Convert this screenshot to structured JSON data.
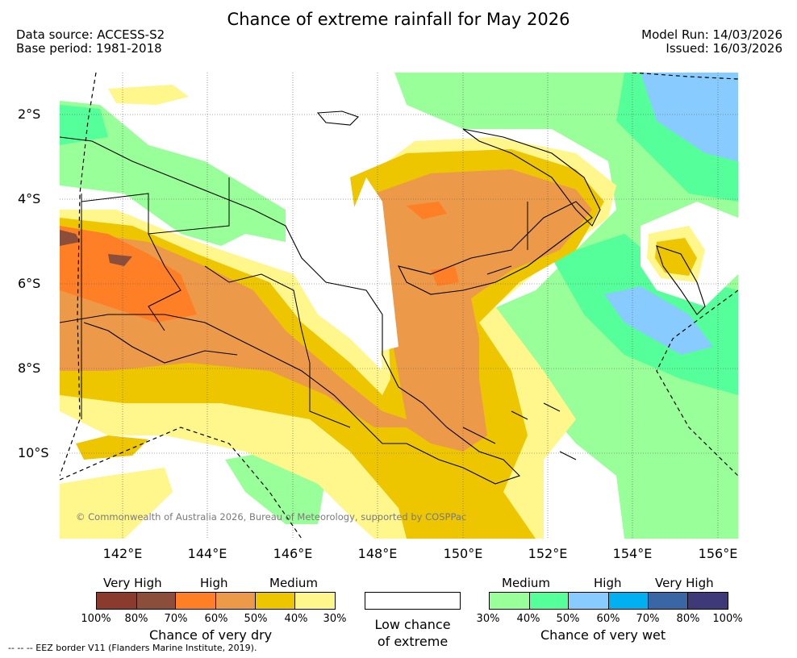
{
  "title": "Chance of extreme rainfall for May 2026",
  "meta": {
    "data_source": "Data source: ACCESS-S2",
    "base_period": "Base period: 1981-2018",
    "model_run": "Model Run: 14/03/2026",
    "issued": "Issued: 16/03/2026"
  },
  "map": {
    "copyright": "© Commonwealth of Australia 2026, Bureau of Meteorology, supported by COSPPac",
    "lat_labels": [
      "2°S",
      "4°S",
      "6°S",
      "8°S",
      "10°S"
    ],
    "lon_labels": [
      "142°E",
      "144°E",
      "146°E",
      "148°E",
      "150°E",
      "152°E",
      "154°E",
      "156°E"
    ],
    "colors": {
      "dry_very_high_100": "#8b3a2e",
      "dry_very_high_80": "#8b4e3a",
      "dry_high_70": "#ff7f27",
      "dry_high_60": "#ec9a4a",
      "dry_medium_50": "#edc600",
      "dry_medium_40": "#fff68c",
      "wet_medium_30": "#99ff99",
      "wet_medium_40": "#55ff99",
      "wet_high_50": "#88ccff",
      "wet_high_60": "#00b0f0",
      "wet_very_high_70": "#3a66a6",
      "wet_very_high_80": "#3e3a7a"
    }
  },
  "legend": {
    "dry": {
      "categories": [
        "Very High",
        "High",
        "Medium"
      ],
      "ticks": [
        "100%",
        "80%",
        "70%",
        "60%",
        "50%",
        "40%",
        "30%"
      ],
      "title": "Chance of very dry",
      "colors": [
        "#8b3a2e",
        "#8b4e3a",
        "#ff7f27",
        "#ec9a4a",
        "#edc600",
        "#fff68c"
      ]
    },
    "low": {
      "line1": "Low chance",
      "line2": "of extreme"
    },
    "wet": {
      "categories": [
        "Medium",
        "High",
        "Very High"
      ],
      "ticks": [
        "30%",
        "40%",
        "50%",
        "60%",
        "70%",
        "80%",
        "100%"
      ],
      "title": "Chance of very wet",
      "colors": [
        "#99ff99",
        "#55ff99",
        "#88ccff",
        "#00b0f0",
        "#3a66a6",
        "#3e3a7a"
      ]
    }
  },
  "footnote": "-- -- -- EEZ border V11 (Flanders Marine Institute, 2019)."
}
